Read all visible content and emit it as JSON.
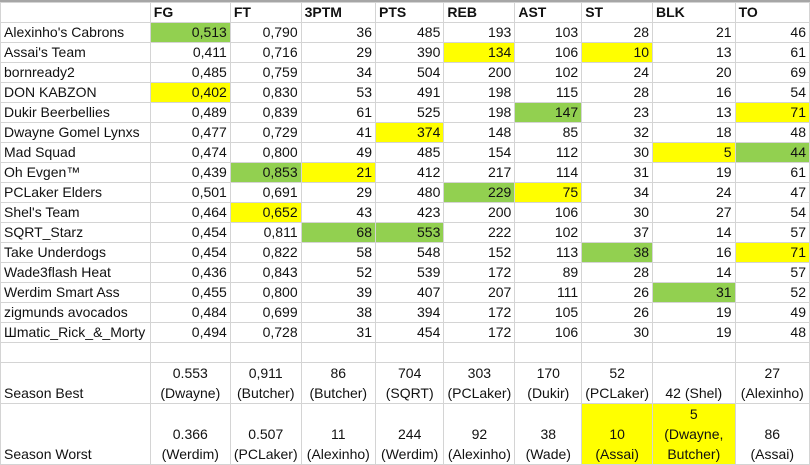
{
  "headers": [
    "",
    "FG",
    "FT",
    "3PTM",
    "PTS",
    "REB",
    "AST",
    "ST",
    "BLK",
    "TO"
  ],
  "colors": {
    "best": "#92d050",
    "worst": "#ffff00"
  },
  "rows": [
    {
      "team": "Alexinho's Cabrons",
      "values": [
        "0,513",
        "0,790",
        "36",
        "485",
        "193",
        "103",
        "28",
        "21",
        "46"
      ],
      "highlight": [
        "g",
        "",
        "",
        "",
        "",
        "",
        "",
        "",
        ""
      ]
    },
    {
      "team": "Assai's Team",
      "values": [
        "0,411",
        "0,716",
        "29",
        "390",
        "134",
        "106",
        "10",
        "13",
        "61"
      ],
      "highlight": [
        "",
        "",
        "",
        "",
        "y",
        "",
        "y",
        "",
        ""
      ]
    },
    {
      "team": "bornready2",
      "values": [
        "0,485",
        "0,759",
        "34",
        "504",
        "200",
        "102",
        "24",
        "20",
        "69"
      ],
      "highlight": [
        "",
        "",
        "",
        "",
        "",
        "",
        "",
        "",
        ""
      ]
    },
    {
      "team": "DON KABZON",
      "values": [
        "0,402",
        "0,830",
        "53",
        "491",
        "198",
        "115",
        "28",
        "16",
        "54"
      ],
      "highlight": [
        "y",
        "",
        "",
        "",
        "",
        "",
        "",
        "",
        ""
      ]
    },
    {
      "team": "Dukir Beerbellies",
      "values": [
        "0,489",
        "0,839",
        "61",
        "525",
        "198",
        "147",
        "23",
        "13",
        "71"
      ],
      "highlight": [
        "",
        "",
        "",
        "",
        "",
        "g",
        "",
        "",
        "y"
      ]
    },
    {
      "team": "Dwayne Gomel Lynxs",
      "values": [
        "0,477",
        "0,729",
        "41",
        "374",
        "148",
        "85",
        "32",
        "18",
        "48"
      ],
      "highlight": [
        "",
        "",
        "",
        "y",
        "",
        "",
        "",
        "",
        ""
      ]
    },
    {
      "team": "Mad Squad",
      "values": [
        "0,474",
        "0,800",
        "49",
        "485",
        "154",
        "112",
        "30",
        "5",
        "44"
      ],
      "highlight": [
        "",
        "",
        "",
        "",
        "",
        "",
        "",
        "y",
        "g"
      ]
    },
    {
      "team": "Oh Evgen™",
      "values": [
        "0,439",
        "0,853",
        "21",
        "412",
        "217",
        "114",
        "31",
        "19",
        "61"
      ],
      "highlight": [
        "",
        "g",
        "y",
        "",
        "",
        "",
        "",
        "",
        ""
      ]
    },
    {
      "team": "PCLaker Elders",
      "values": [
        "0,501",
        "0,691",
        "29",
        "480",
        "229",
        "75",
        "34",
        "24",
        "47"
      ],
      "highlight": [
        "",
        "",
        "",
        "",
        "g",
        "y",
        "",
        "",
        ""
      ]
    },
    {
      "team": "Shel's Team",
      "values": [
        "0,464",
        "0,652",
        "43",
        "423",
        "200",
        "106",
        "30",
        "27",
        "54"
      ],
      "highlight": [
        "",
        "y",
        "",
        "",
        "",
        "",
        "",
        "",
        ""
      ]
    },
    {
      "team": "SQRT_Starz",
      "values": [
        "0,454",
        "0,811",
        "68",
        "553",
        "222",
        "102",
        "37",
        "14",
        "57"
      ],
      "highlight": [
        "",
        "",
        "g",
        "g",
        "",
        "",
        "",
        "",
        ""
      ]
    },
    {
      "team": "Take Underdogs",
      "values": [
        "0,454",
        "0,822",
        "58",
        "548",
        "152",
        "113",
        "38",
        "16",
        "71"
      ],
      "highlight": [
        "",
        "",
        "",
        "",
        "",
        "",
        "g",
        "",
        "y"
      ]
    },
    {
      "team": "Wade3flash Heat",
      "values": [
        "0,436",
        "0,843",
        "52",
        "539",
        "172",
        "89",
        "28",
        "14",
        "57"
      ],
      "highlight": [
        "",
        "",
        "",
        "",
        "",
        "",
        "",
        "",
        ""
      ]
    },
    {
      "team": "Werdim Smart Ass",
      "values": [
        "0,455",
        "0,800",
        "39",
        "407",
        "207",
        "111",
        "26",
        "31",
        "52"
      ],
      "highlight": [
        "",
        "",
        "",
        "",
        "",
        "",
        "",
        "g",
        ""
      ]
    },
    {
      "team": "zigmunds avocados",
      "values": [
        "0,484",
        "0,699",
        "38",
        "394",
        "172",
        "105",
        "26",
        "19",
        "49"
      ],
      "highlight": [
        "",
        "",
        "",
        "",
        "",
        "",
        "",
        "",
        ""
      ]
    },
    {
      "team": "Шmatic_Rick_&_Morty",
      "values": [
        "0,494",
        "0,728",
        "31",
        "454",
        "172",
        "106",
        "30",
        "19",
        "48"
      ],
      "highlight": [
        "",
        "",
        "",
        "",
        "",
        "",
        "",
        "",
        ""
      ]
    }
  ],
  "season_best": {
    "label": "Season Best",
    "values": [
      "0.553\n(Dwayne)",
      "0,911\n(Butcher)",
      "86\n(Butcher)",
      "704\n(SQRT)",
      "303\n(PCLaker)",
      "170\n(Dukir)",
      "52\n(PCLaker)",
      "42   (Shel)",
      "27\n(Alexinho)"
    ],
    "highlight": [
      "",
      "",
      "",
      "",
      "",
      "",
      "",
      "",
      ""
    ]
  },
  "season_worst": {
    "label": "Season Worst",
    "values": [
      "0.366\n(Werdim)",
      "0.507\n(PCLaker)",
      "11\n(Alexinho)",
      "244\n(Werdim)",
      "92\n(Alexinho)",
      "38\n(Wade)",
      "10\n(Assai)",
      "5\n(Dwayne,\nButcher)",
      "86\n(Assai)"
    ],
    "highlight": [
      "",
      "",
      "",
      "",
      "",
      "",
      "y",
      "y",
      ""
    ]
  }
}
